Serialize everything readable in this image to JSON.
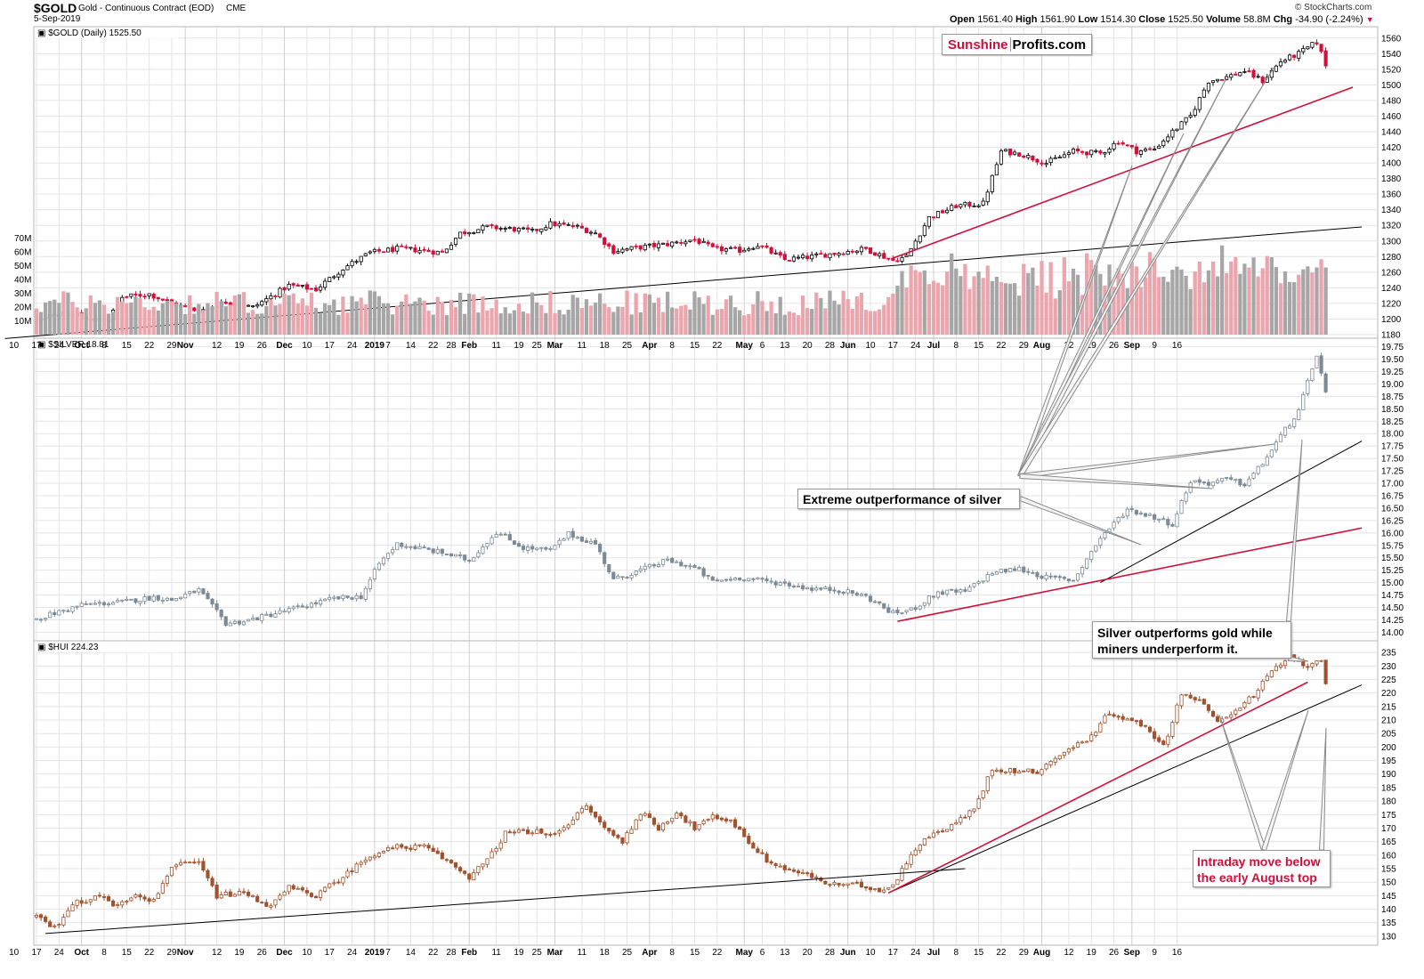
{
  "header": {
    "symbol": "$GOLD",
    "description": "Gold - Continuous Contract (EOD)",
    "exchange": "CME",
    "date": "5-Sep-2019",
    "watermark": "© StockCharts.com",
    "open_label": "Open",
    "open": "1561.40",
    "high_label": "High",
    "high": "1561.90",
    "low_label": "Low",
    "low": "1514.30",
    "close_label": "Close",
    "close": "1525.50",
    "volume_label": "Volume",
    "volume": "58.8M",
    "chg_label": "Chg",
    "chg": "-34.90 (-2.24%)"
  },
  "logo": {
    "part1": "Sunshine",
    "part2": "Profits.com"
  },
  "colors": {
    "up": "#000000",
    "down": "#d0103a",
    "silver": "#7b8a95",
    "hui": "#a0522d",
    "red_line": "#d0103a",
    "grid": "#e4e4e4",
    "vol_up": "#a6a6a6",
    "vol_down": "#eba5ad"
  },
  "annotations": {
    "silver_callout": "Extreme outperformance of silver",
    "miners_callout_line1": "Silver outperforms gold while",
    "miners_callout_line2": "miners underperform it.",
    "intraday_line1": "Intraday move below",
    "intraday_line2": "the early August top"
  },
  "chart_data": [
    {
      "type": "candlestick",
      "title": "$GOLD (Daily) 1525.50",
      "ylim": [
        1180,
        1570
      ],
      "yticks": [
        1180,
        1200,
        1220,
        1240,
        1260,
        1280,
        1300,
        1320,
        1340,
        1360,
        1380,
        1400,
        1420,
        1440,
        1460,
        1480,
        1500,
        1520,
        1540,
        1560
      ],
      "volume_ticks": [
        "10M",
        "20M",
        "30M",
        "40M",
        "50M",
        "60M",
        "70M"
      ],
      "volume_ylim": [
        0,
        78
      ],
      "anchors": [
        {
          "x": 0,
          "y": 1197
        },
        {
          "x": 6,
          "y": 1210
        },
        {
          "x": 12,
          "y": 1198
        },
        {
          "x": 16,
          "y": 1200
        },
        {
          "x": 19,
          "y": 1228
        },
        {
          "x": 25,
          "y": 1232
        },
        {
          "x": 30,
          "y": 1220
        },
        {
          "x": 36,
          "y": 1210
        },
        {
          "x": 42,
          "y": 1222
        },
        {
          "x": 48,
          "y": 1215
        },
        {
          "x": 56,
          "y": 1243
        },
        {
          "x": 62,
          "y": 1238
        },
        {
          "x": 68,
          "y": 1265
        },
        {
          "x": 74,
          "y": 1285
        },
        {
          "x": 80,
          "y": 1290
        },
        {
          "x": 86,
          "y": 1288
        },
        {
          "x": 90,
          "y": 1285
        },
        {
          "x": 94,
          "y": 1310
        },
        {
          "x": 100,
          "y": 1318
        },
        {
          "x": 106,
          "y": 1315
        },
        {
          "x": 110,
          "y": 1312
        },
        {
          "x": 114,
          "y": 1322
        },
        {
          "x": 120,
          "y": 1318
        },
        {
          "x": 124,
          "y": 1310
        },
        {
          "x": 128,
          "y": 1287
        },
        {
          "x": 134,
          "y": 1292
        },
        {
          "x": 140,
          "y": 1296
        },
        {
          "x": 146,
          "y": 1302
        },
        {
          "x": 150,
          "y": 1290
        },
        {
          "x": 156,
          "y": 1288
        },
        {
          "x": 160,
          "y": 1295
        },
        {
          "x": 166,
          "y": 1276
        },
        {
          "x": 172,
          "y": 1280
        },
        {
          "x": 178,
          "y": 1285
        },
        {
          "x": 184,
          "y": 1290
        },
        {
          "x": 190,
          "y": 1275
        },
        {
          "x": 193,
          "y": 1280
        },
        {
          "x": 198,
          "y": 1330
        },
        {
          "x": 204,
          "y": 1345
        },
        {
          "x": 210,
          "y": 1348
        },
        {
          "x": 214,
          "y": 1415
        },
        {
          "x": 218,
          "y": 1412
        },
        {
          "x": 224,
          "y": 1400
        },
        {
          "x": 230,
          "y": 1415
        },
        {
          "x": 236,
          "y": 1412
        },
        {
          "x": 240,
          "y": 1428
        },
        {
          "x": 244,
          "y": 1415
        },
        {
          "x": 248,
          "y": 1418
        },
        {
          "x": 252,
          "y": 1440
        },
        {
          "x": 256,
          "y": 1460
        },
        {
          "x": 260,
          "y": 1505
        },
        {
          "x": 264,
          "y": 1510
        },
        {
          "x": 268,
          "y": 1518
        },
        {
          "x": 272,
          "y": 1505
        },
        {
          "x": 276,
          "y": 1530
        },
        {
          "x": 280,
          "y": 1540
        },
        {
          "x": 284,
          "y": 1555
        },
        {
          "x": 286,
          "y": 1526
        }
      ],
      "trendlines": [
        {
          "color": "black",
          "from": {
            "x": -7,
            "y": 1175
          },
          "to": {
            "x": 294,
            "y": 1318
          }
        },
        {
          "color": "red",
          "from": {
            "x": 190,
            "y": 1278
          },
          "to": {
            "x": 292,
            "y": 1497
          }
        }
      ]
    },
    {
      "type": "candlestick",
      "title": "$SILVER 18.81",
      "ylim": [
        13.9,
        19.85
      ],
      "yticks": [
        14.0,
        14.25,
        14.5,
        14.75,
        15.0,
        15.25,
        15.5,
        15.75,
        16.0,
        16.25,
        16.5,
        16.75,
        17.0,
        17.25,
        17.5,
        17.75,
        18.0,
        18.25,
        18.5,
        18.75,
        19.0,
        19.25,
        19.5,
        19.75
      ],
      "anchors": [
        {
          "x": 0,
          "y": 14.27
        },
        {
          "x": 10,
          "y": 14.55
        },
        {
          "x": 20,
          "y": 14.62
        },
        {
          "x": 26,
          "y": 14.71
        },
        {
          "x": 30,
          "y": 14.65
        },
        {
          "x": 36,
          "y": 14.85
        },
        {
          "x": 42,
          "y": 14.18
        },
        {
          "x": 46,
          "y": 14.22
        },
        {
          "x": 56,
          "y": 14.45
        },
        {
          "x": 66,
          "y": 14.68
        },
        {
          "x": 72,
          "y": 14.72
        },
        {
          "x": 76,
          "y": 15.38
        },
        {
          "x": 80,
          "y": 15.78
        },
        {
          "x": 90,
          "y": 15.6
        },
        {
          "x": 96,
          "y": 15.45
        },
        {
          "x": 102,
          "y": 16.02
        },
        {
          "x": 108,
          "y": 15.7
        },
        {
          "x": 114,
          "y": 15.65
        },
        {
          "x": 118,
          "y": 15.98
        },
        {
          "x": 124,
          "y": 15.78
        },
        {
          "x": 128,
          "y": 15.05
        },
        {
          "x": 134,
          "y": 15.25
        },
        {
          "x": 140,
          "y": 15.45
        },
        {
          "x": 146,
          "y": 15.3
        },
        {
          "x": 150,
          "y": 15.02
        },
        {
          "x": 156,
          "y": 15.1
        },
        {
          "x": 166,
          "y": 14.98
        },
        {
          "x": 172,
          "y": 14.88
        },
        {
          "x": 178,
          "y": 14.85
        },
        {
          "x": 184,
          "y": 14.72
        },
        {
          "x": 190,
          "y": 14.38
        },
        {
          "x": 194,
          "y": 14.45
        },
        {
          "x": 200,
          "y": 14.8
        },
        {
          "x": 206,
          "y": 14.82
        },
        {
          "x": 212,
          "y": 15.2
        },
        {
          "x": 218,
          "y": 15.28
        },
        {
          "x": 224,
          "y": 15.1
        },
        {
          "x": 230,
          "y": 15.05
        },
        {
          "x": 236,
          "y": 15.9
        },
        {
          "x": 242,
          "y": 16.48
        },
        {
          "x": 248,
          "y": 16.32
        },
        {
          "x": 252,
          "y": 16.18
        },
        {
          "x": 256,
          "y": 17.05
        },
        {
          "x": 260,
          "y": 17.0
        },
        {
          "x": 264,
          "y": 17.08
        },
        {
          "x": 268,
          "y": 16.98
        },
        {
          "x": 272,
          "y": 17.4
        },
        {
          "x": 276,
          "y": 17.95
        },
        {
          "x": 280,
          "y": 18.45
        },
        {
          "x": 284,
          "y": 19.6
        },
        {
          "x": 286,
          "y": 18.81
        }
      ],
      "trendlines": [
        {
          "color": "black",
          "from": {
            "x": 236,
            "y": 15.0
          },
          "to": {
            "x": 294,
            "y": 17.85
          }
        },
        {
          "color": "red",
          "from": {
            "x": 191,
            "y": 14.22
          },
          "to": {
            "x": 294,
            "y": 16.1
          }
        }
      ]
    },
    {
      "type": "candlestick",
      "title": "$HUI 224.23",
      "ylim": [
        128,
        238
      ],
      "yticks": [
        130,
        135,
        140,
        145,
        150,
        155,
        160,
        165,
        170,
        175,
        180,
        185,
        190,
        195,
        200,
        205,
        210,
        215,
        220,
        225,
        230,
        235
      ],
      "anchors": [
        {
          "x": 0,
          "y": 137
        },
        {
          "x": 4,
          "y": 133
        },
        {
          "x": 8,
          "y": 142
        },
        {
          "x": 14,
          "y": 145
        },
        {
          "x": 18,
          "y": 141
        },
        {
          "x": 22,
          "y": 146
        },
        {
          "x": 26,
          "y": 143
        },
        {
          "x": 30,
          "y": 156
        },
        {
          "x": 36,
          "y": 157
        },
        {
          "x": 40,
          "y": 145
        },
        {
          "x": 46,
          "y": 146
        },
        {
          "x": 52,
          "y": 141
        },
        {
          "x": 56,
          "y": 148
        },
        {
          "x": 62,
          "y": 145
        },
        {
          "x": 68,
          "y": 152
        },
        {
          "x": 74,
          "y": 160
        },
        {
          "x": 80,
          "y": 163
        },
        {
          "x": 86,
          "y": 163
        },
        {
          "x": 92,
          "y": 157
        },
        {
          "x": 96,
          "y": 152
        },
        {
          "x": 100,
          "y": 158
        },
        {
          "x": 104,
          "y": 168
        },
        {
          "x": 110,
          "y": 169
        },
        {
          "x": 114,
          "y": 167
        },
        {
          "x": 118,
          "y": 172
        },
        {
          "x": 122,
          "y": 178
        },
        {
          "x": 126,
          "y": 170
        },
        {
          "x": 130,
          "y": 165
        },
        {
          "x": 134,
          "y": 176
        },
        {
          "x": 138,
          "y": 170
        },
        {
          "x": 142,
          "y": 176
        },
        {
          "x": 146,
          "y": 170
        },
        {
          "x": 150,
          "y": 174
        },
        {
          "x": 154,
          "y": 173
        },
        {
          "x": 158,
          "y": 165
        },
        {
          "x": 162,
          "y": 158
        },
        {
          "x": 166,
          "y": 155
        },
        {
          "x": 172,
          "y": 152
        },
        {
          "x": 176,
          "y": 149
        },
        {
          "x": 182,
          "y": 149
        },
        {
          "x": 188,
          "y": 147
        },
        {
          "x": 191,
          "y": 151
        },
        {
          "x": 194,
          "y": 161
        },
        {
          "x": 198,
          "y": 167
        },
        {
          "x": 204,
          "y": 172
        },
        {
          "x": 208,
          "y": 177
        },
        {
          "x": 212,
          "y": 192
        },
        {
          "x": 218,
          "y": 191
        },
        {
          "x": 222,
          "y": 191
        },
        {
          "x": 226,
          "y": 196
        },
        {
          "x": 230,
          "y": 200
        },
        {
          "x": 234,
          "y": 204
        },
        {
          "x": 238,
          "y": 213
        },
        {
          "x": 242,
          "y": 210
        },
        {
          "x": 246,
          "y": 208
        },
        {
          "x": 250,
          "y": 200
        },
        {
          "x": 254,
          "y": 220
        },
        {
          "x": 258,
          "y": 217
        },
        {
          "x": 262,
          "y": 209
        },
        {
          "x": 266,
          "y": 214
        },
        {
          "x": 270,
          "y": 219
        },
        {
          "x": 274,
          "y": 228
        },
        {
          "x": 278,
          "y": 233
        },
        {
          "x": 282,
          "y": 230
        },
        {
          "x": 285,
          "y": 233
        },
        {
          "x": 286,
          "y": 224
        }
      ],
      "trendlines": [
        {
          "color": "black",
          "from": {
            "x": 2,
            "y": 131
          },
          "to": {
            "x": 206,
            "y": 155
          }
        },
        {
          "color": "black",
          "from": {
            "x": 189,
            "y": 146
          },
          "to": {
            "x": 294,
            "y": 223
          }
        },
        {
          "color": "red",
          "from": {
            "x": 189,
            "y": 146
          },
          "to": {
            "x": 282,
            "y": 224
          }
        }
      ]
    }
  ],
  "x_axis": {
    "bars": 292,
    "labels": [
      {
        "i": -5,
        "t": "10"
      },
      {
        "i": 0,
        "t": "17"
      },
      {
        "i": 5,
        "t": "24"
      },
      {
        "i": 10,
        "t": "Oct"
      },
      {
        "i": 15,
        "t": "8"
      },
      {
        "i": 20,
        "t": "15"
      },
      {
        "i": 25,
        "t": "22"
      },
      {
        "i": 30,
        "t": "29"
      },
      {
        "i": 33,
        "t": "Nov"
      },
      {
        "i": 40,
        "t": "12"
      },
      {
        "i": 45,
        "t": "19"
      },
      {
        "i": 50,
        "t": "26"
      },
      {
        "i": 55,
        "t": "Dec"
      },
      {
        "i": 60,
        "t": "10"
      },
      {
        "i": 65,
        "t": "17"
      },
      {
        "i": 70,
        "t": "24"
      },
      {
        "i": 75,
        "t": "2019"
      },
      {
        "i": 78,
        "t": "7"
      },
      {
        "i": 83,
        "t": "14"
      },
      {
        "i": 88,
        "t": "22"
      },
      {
        "i": 92,
        "t": "28"
      },
      {
        "i": 96,
        "t": "Feb"
      },
      {
        "i": 102,
        "t": "11"
      },
      {
        "i": 107,
        "t": "19"
      },
      {
        "i": 111,
        "t": "25"
      },
      {
        "i": 115,
        "t": "Mar"
      },
      {
        "i": 121,
        "t": "11"
      },
      {
        "i": 126,
        "t": "18"
      },
      {
        "i": 131,
        "t": "25"
      },
      {
        "i": 136,
        "t": "Apr"
      },
      {
        "i": 141,
        "t": "8"
      },
      {
        "i": 146,
        "t": "15"
      },
      {
        "i": 151,
        "t": "22"
      },
      {
        "i": 157,
        "t": "May"
      },
      {
        "i": 161,
        "t": "6"
      },
      {
        "i": 166,
        "t": "13"
      },
      {
        "i": 171,
        "t": "20"
      },
      {
        "i": 176,
        "t": "28"
      },
      {
        "i": 180,
        "t": "Jun"
      },
      {
        "i": 185,
        "t": "10"
      },
      {
        "i": 190,
        "t": "17"
      },
      {
        "i": 195,
        "t": "24"
      },
      {
        "i": 199,
        "t": "Jul"
      },
      {
        "i": 204,
        "t": "8"
      },
      {
        "i": 209,
        "t": "15"
      },
      {
        "i": 214,
        "t": "22"
      },
      {
        "i": 219,
        "t": "29"
      },
      {
        "i": 223,
        "t": "Aug"
      },
      {
        "i": 229,
        "t": "12"
      },
      {
        "i": 234,
        "t": "19"
      },
      {
        "i": 239,
        "t": "26"
      },
      {
        "i": 243,
        "t": "Sep"
      },
      {
        "i": 248,
        "t": "9"
      },
      {
        "i": 253,
        "t": "16"
      }
    ]
  }
}
